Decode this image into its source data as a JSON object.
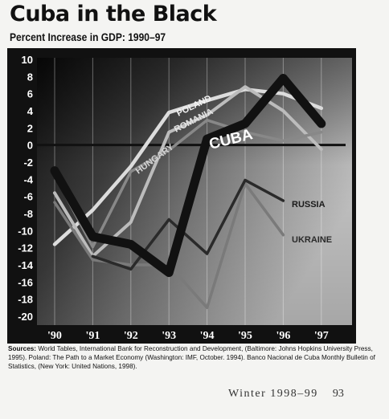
{
  "title": "Cuba in the Black",
  "subtitle": "Percent Increase in GDP: 1990–97",
  "sources": {
    "label": "Sources:",
    "text": "World Tables, International Bank for Reconstruction and Development, (Baltimore: Johns Hopkins University Press, 1995). Poland: The Path to a Market Economy (Washington: IMF, October. 1994). Banco Nacional de Cuba Monthly Bulletin of Statistics, (New York: United Nations, 1998)."
  },
  "footer": {
    "season": "Winter 1998–99",
    "page": "93"
  },
  "chart_data": {
    "type": "line",
    "categories": [
      "'90",
      "'91",
      "'92",
      "'93",
      "'94",
      "'95",
      "'96",
      "'97"
    ],
    "y_ticks": [
      "10",
      "8",
      "6",
      "4",
      "2",
      "0",
      "-2",
      "-4",
      "-6",
      "-8",
      "-10",
      "-12",
      "-14",
      "-16",
      "-18",
      "-20"
    ],
    "ylim": [
      -20,
      10
    ],
    "grid": "vertical",
    "series": [
      {
        "name": "POLAND",
        "values": [
          -11.6,
          -7.6,
          -2.5,
          3.8,
          5.2,
          6.5,
          6.0,
          4.3
        ],
        "color": "#dcdcdc"
      },
      {
        "name": "ROMANIA",
        "values": [
          -5.6,
          -13.0,
          -9.0,
          1.5,
          3.5,
          6.8,
          4.0,
          -0.5
        ],
        "color": "#bcbcbc"
      },
      {
        "name": "HUNGARY",
        "values": [
          -3.5,
          -11.9,
          -3.1,
          -0.6,
          2.9,
          1.5,
          0.5,
          1.5
        ],
        "color": "#888888"
      },
      {
        "name": "CUBA",
        "values": [
          -3.0,
          -10.7,
          -11.6,
          -14.9,
          0.7,
          2.5,
          7.8,
          2.5
        ],
        "color": "#111111"
      },
      {
        "name": "RUSSIA",
        "values": [
          null,
          -13.0,
          -14.5,
          -8.7,
          -12.7,
          -4.1,
          -6.5,
          null
        ],
        "color": "#2a2a2a"
      },
      {
        "name": "UKRAINE",
        "values": [
          -6.7,
          -13.4,
          -14.0,
          -14.0,
          -19.0,
          -4.5,
          -10.5,
          null
        ],
        "color": "#7a7a7a"
      }
    ]
  }
}
